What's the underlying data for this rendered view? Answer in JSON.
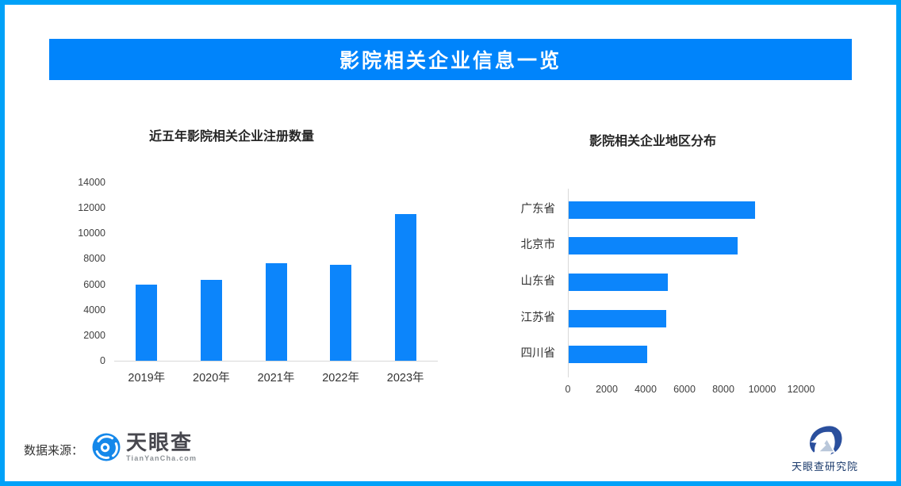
{
  "page": {
    "title": "影院相关企业信息一览",
    "border_color": "#00A1F8",
    "banner_color": "#0084FB",
    "background_color": "#FFFFFF"
  },
  "footer": {
    "source_label": "数据来源：",
    "tyc_logo": {
      "name": "天眼查",
      "domain": "TianYanCha.com",
      "icon_color": "#1588EA"
    },
    "institute_logo": {
      "name": "天眼查研究院",
      "icon_color": "#2A4F9D"
    }
  },
  "chart_data": [
    {
      "type": "bar",
      "orientation": "vertical",
      "title": "近五年影院相关企业注册数量",
      "categories": [
        "2019年",
        "2020年",
        "2021年",
        "2022年",
        "2023年"
      ],
      "values": [
        5950,
        6350,
        7650,
        7550,
        11500
      ],
      "ylabel": "",
      "xlabel": "",
      "ylim": [
        0,
        14000
      ],
      "yticks": [
        0,
        2000,
        4000,
        6000,
        8000,
        10000,
        12000,
        14000
      ],
      "grid": false,
      "legend": false,
      "bar_color": "#0C85FB"
    },
    {
      "type": "bar",
      "orientation": "horizontal",
      "title": "影院相关企业地区分布",
      "categories": [
        "广东省",
        "北京市",
        "山东省",
        "江苏省",
        "四川省"
      ],
      "values": [
        9600,
        8700,
        5100,
        5000,
        4050
      ],
      "ylabel": "",
      "xlabel": "",
      "xlim": [
        0,
        12000
      ],
      "xticks": [
        0,
        2000,
        4000,
        6000,
        8000,
        10000,
        12000
      ],
      "grid": false,
      "legend": false,
      "bar_color": "#0C85FB"
    }
  ]
}
